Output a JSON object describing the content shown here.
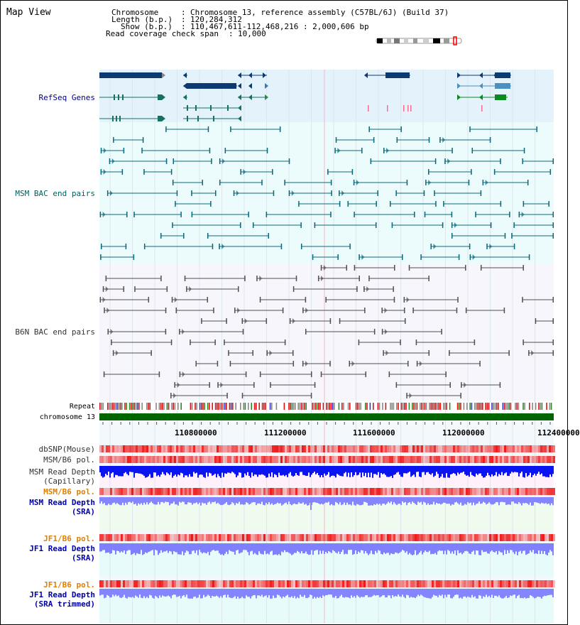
{
  "view": {
    "title": "Map View"
  },
  "header": {
    "chromosome_label": "Chromosome",
    "chromosome_value": "Chromosome 13, reference assembly (C57BL/6J) (Build 37)",
    "length_label": "Length (b.p.)",
    "length_value": "120,284,312",
    "show_label": "Show (b.p.)",
    "show_value": "110,467,611-112,468,216 : 2,000,606 bp",
    "coverage_label": "Read coverage check span",
    "coverage_value": "10,000"
  },
  "tracks": {
    "refseq": "RefSeq Genes",
    "msm_bac": "MSM BAC end pairs",
    "b6n_bac": "B6N BAC end pairs",
    "repeat": "Repeat",
    "chromosome": "chromosome 13",
    "dbsnp": "dbSNP(Mouse)",
    "msm_b6_pol": "MSM/B6 pol.",
    "msm_depth_cap": "MSM Read Depth\n(Capillary)",
    "msm_b6_pol2": "MSM/B6 pol.",
    "msm_depth_sra": "MSM Read Depth\n(SRA)",
    "jf1_b6_pol": "JF1/B6 pol.",
    "jf1_depth_sra": "JF1 Read Depth\n(SRA)",
    "jf1_b6_pol2": "JF1/B6 pol.",
    "jf1_depth_trim": "JF1 Read Depth\n(SRA trimmed)"
  },
  "axis": {
    "ticks": [
      "110800000",
      "111200000",
      "111600000",
      "112000000",
      "112400000"
    ]
  },
  "colors": {
    "refseq": "#00008b",
    "msm": "#006060",
    "b6n": "#333333",
    "pol": "#e00000",
    "depth": "#0000ff",
    "sra": "#8080ff",
    "orange": "#e08000"
  }
}
